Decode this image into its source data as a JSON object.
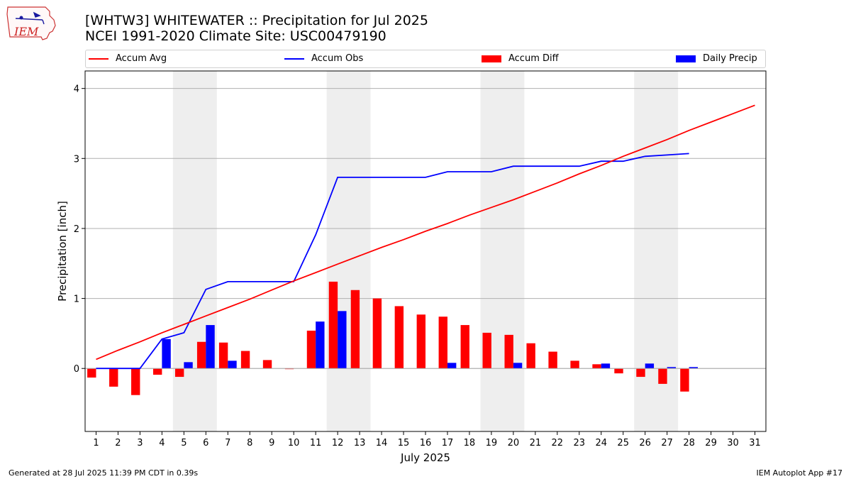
{
  "header": {
    "title_line1": "[WHTW3] WHITEWATER :: Precipitation for Jul 2025",
    "title_line2": "NCEI 1991-2020 Climate Site: USC00479190",
    "logo_text": "IEM"
  },
  "footer": {
    "left": "Generated at 28 Jul 2025 11:39 PM CDT in 0.39s",
    "right": "IEM Autoplot App #17"
  },
  "legend": {
    "accum_avg": "Accum Avg",
    "accum_obs": "Accum Obs",
    "accum_diff": "Accum Diff",
    "daily_precip": "Daily Precip"
  },
  "colors": {
    "accum_avg": "#ff0000",
    "accum_obs": "#0000ff",
    "accum_diff": "#ff0000",
    "daily_precip": "#0000ff",
    "weekend_shade": "#eeeeee",
    "grid": "#b0b0b0"
  },
  "chart_data": {
    "type": "bar",
    "xlabel": "July 2025",
    "ylabel": "Precipitation [inch]",
    "ylim": [
      -0.9,
      4.25
    ],
    "xlim": [
      0.5,
      31.5
    ],
    "yticks": [
      0,
      1,
      2,
      3,
      4
    ],
    "grid": "horizontal",
    "legend_position": "top",
    "days": [
      1,
      2,
      3,
      4,
      5,
      6,
      7,
      8,
      9,
      10,
      11,
      12,
      13,
      14,
      15,
      16,
      17,
      18,
      19,
      20,
      21,
      22,
      23,
      24,
      25,
      26,
      27,
      28,
      29,
      30,
      31
    ],
    "weekend_spans": [
      [
        4.5,
        6.5
      ],
      [
        11.5,
        13.5
      ],
      [
        18.5,
        20.5
      ],
      [
        25.5,
        27.5
      ]
    ],
    "series": [
      {
        "name": "Accum Avg",
        "kind": "line",
        "x": [
          1,
          2,
          3,
          4,
          5,
          6,
          7,
          8,
          9,
          10,
          11,
          12,
          13,
          14,
          15,
          16,
          17,
          18,
          19,
          20,
          21,
          22,
          23,
          24,
          25,
          26,
          27,
          28,
          29,
          30,
          31
        ],
        "values": [
          0.13,
          0.26,
          0.38,
          0.51,
          0.63,
          0.75,
          0.87,
          0.99,
          1.12,
          1.25,
          1.37,
          1.49,
          1.61,
          1.73,
          1.84,
          1.96,
          2.07,
          2.19,
          2.3,
          2.41,
          2.53,
          2.65,
          2.78,
          2.9,
          3.03,
          3.15,
          3.27,
          3.4,
          3.52,
          3.64,
          3.76
        ]
      },
      {
        "name": "Accum Obs",
        "kind": "line",
        "x": [
          1,
          2,
          3,
          4,
          5,
          6,
          7,
          8,
          9,
          10,
          11,
          12,
          13,
          14,
          15,
          16,
          17,
          18,
          19,
          20,
          21,
          22,
          23,
          24,
          25,
          26,
          27,
          28
        ],
        "values": [
          0.0,
          0.0,
          0.0,
          0.42,
          0.51,
          1.13,
          1.24,
          1.24,
          1.24,
          1.24,
          1.91,
          2.73,
          2.73,
          2.73,
          2.73,
          2.73,
          2.81,
          2.81,
          2.81,
          2.89,
          2.89,
          2.89,
          2.89,
          2.96,
          2.96,
          3.03,
          3.05,
          3.07
        ]
      },
      {
        "name": "Accum Diff",
        "kind": "bar",
        "x": [
          1,
          2,
          3,
          4,
          5,
          6,
          7,
          8,
          9,
          10,
          11,
          12,
          13,
          14,
          15,
          16,
          17,
          18,
          19,
          20,
          21,
          22,
          23,
          24,
          25,
          26,
          27,
          28
        ],
        "values": [
          -0.13,
          -0.26,
          -0.38,
          -0.09,
          -0.12,
          0.38,
          0.37,
          0.25,
          0.12,
          -0.01,
          0.54,
          1.24,
          1.12,
          1.0,
          0.89,
          0.77,
          0.74,
          0.62,
          0.51,
          0.48,
          0.36,
          0.24,
          0.11,
          0.06,
          -0.07,
          -0.12,
          -0.22,
          -0.33
        ]
      },
      {
        "name": "Daily Precip",
        "kind": "bar",
        "x": [
          1,
          2,
          3,
          4,
          5,
          6,
          7,
          8,
          9,
          10,
          11,
          12,
          13,
          14,
          15,
          16,
          17,
          18,
          19,
          20,
          21,
          22,
          23,
          24,
          25,
          26,
          27,
          28
        ],
        "values": [
          0,
          0,
          0,
          0.42,
          0.09,
          0.62,
          0.11,
          0,
          0,
          0,
          0.67,
          0.82,
          0,
          0,
          0,
          0,
          0.08,
          0,
          0,
          0.08,
          0,
          0,
          0,
          0.07,
          0,
          0.07,
          0.02,
          0.02
        ]
      }
    ]
  }
}
